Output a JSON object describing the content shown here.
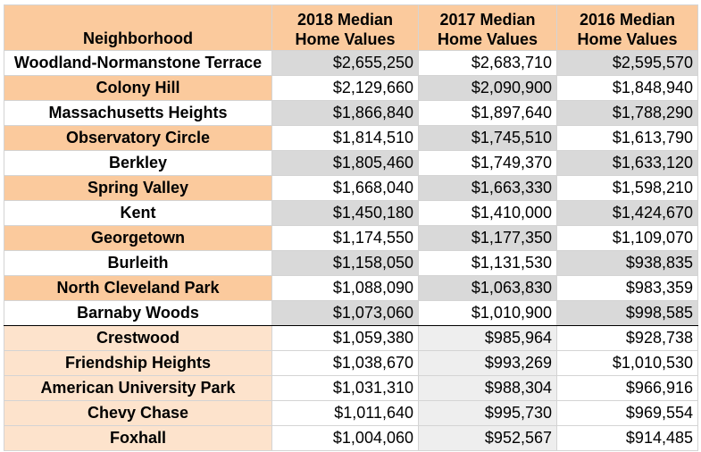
{
  "chart_data": {
    "type": "table",
    "columns": [
      "Neighborhood",
      "2018 Median Home Values",
      "2017 Median Home Values",
      "2016 Median Home Values"
    ],
    "header_lines": [
      [
        "Neighborhood"
      ],
      [
        "2018 Median",
        "Home Values"
      ],
      [
        "2017 Median",
        "Home Values"
      ],
      [
        "2016 Median",
        "Home Values"
      ]
    ],
    "rows": [
      [
        "Woodland-Normanstone Terrace",
        "$2,655,250",
        "$2,683,710",
        "$2,595,570"
      ],
      [
        "Colony Hill",
        "$2,129,660",
        "$2,090,900",
        "$1,848,940"
      ],
      [
        "Massachusetts Heights",
        "$1,866,840",
        "$1,897,640",
        "$1,788,290"
      ],
      [
        "Observatory Circle",
        "$1,814,510",
        "$1,745,510",
        "$1,613,790"
      ],
      [
        "Berkley",
        "$1,805,460",
        "$1,749,370",
        "$1,633,120"
      ],
      [
        "Spring Valley",
        "$1,668,040",
        "$1,663,330",
        "$1,598,210"
      ],
      [
        "Kent",
        "$1,450,180",
        "$1,410,000",
        "$1,424,670"
      ],
      [
        "Georgetown",
        "$1,174,550",
        "$1,177,350",
        "$1,109,070"
      ],
      [
        "Burleith",
        "$1,158,050",
        "$1,131,530",
        "$938,835"
      ],
      [
        "North Cleveland Park",
        "$1,088,090",
        "$1,063,830",
        "$983,359"
      ],
      [
        "Barnaby Woods",
        "$1,073,060",
        "$1,010,900",
        "$998,585"
      ],
      [
        "Crestwood",
        "$1,059,380",
        "$985,964",
        "$928,738"
      ],
      [
        "Friendship Heights",
        "$1,038,670",
        "$993,269",
        "$1,010,530"
      ],
      [
        "American University Park",
        "$1,031,310",
        "$988,304",
        "$966,916"
      ],
      [
        "Chevy Chase",
        "$1,011,640",
        "$995,730",
        "$969,554"
      ],
      [
        "Foxhall",
        "$1,004,060",
        "$952,567",
        "$914,485"
      ]
    ],
    "highlighted_rows": 11
  },
  "colors": {
    "header_bg": "#fbca9d",
    "orange_row_bg": "#fbca9d",
    "white_bg": "#ffffff",
    "gray_cell_bg": "#d9d9d9",
    "light_orange_bg": "#fde3cc",
    "light_gray_cell_bg": "#eeeeee"
  }
}
